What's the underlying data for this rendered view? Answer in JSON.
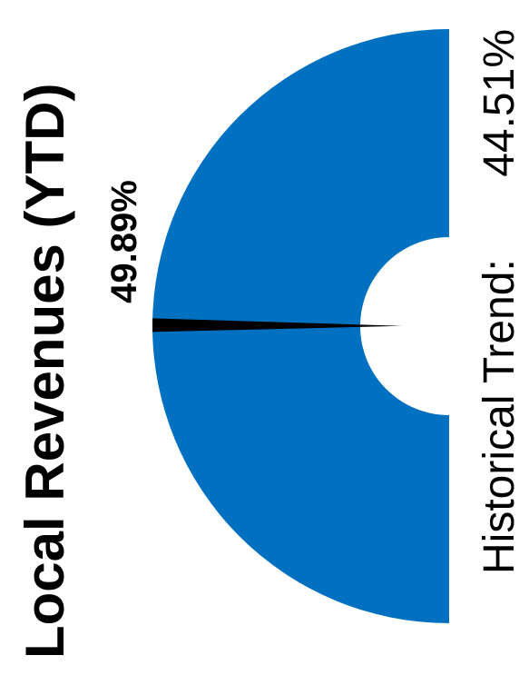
{
  "chart_data": {
    "type": "gauge",
    "title": "Local Revenues (YTD)",
    "value": 49.89,
    "value_label": "49.89%",
    "range": [
      0,
      100
    ],
    "historical_trend_label": "Historical Trend:",
    "historical_trend_value": "44.51%",
    "gauge_color": "#0070c0",
    "needle_color": "#000000"
  }
}
